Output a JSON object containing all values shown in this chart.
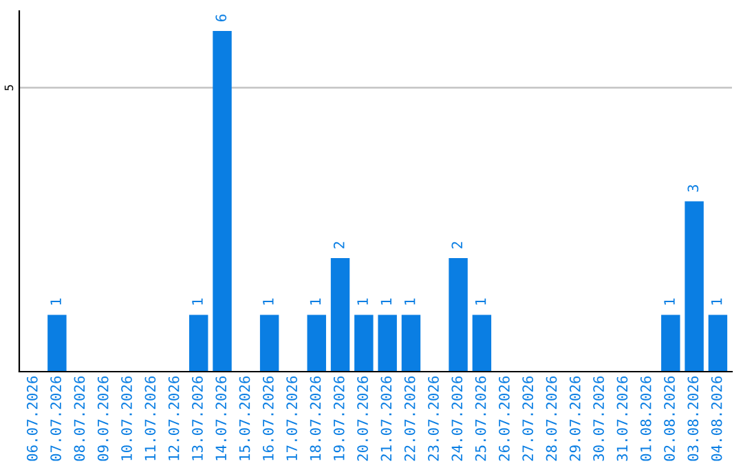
{
  "chart_data": {
    "type": "bar",
    "categories": [
      "06.07.2026",
      "07.07.2026",
      "08.07.2026",
      "09.07.2026",
      "10.07.2026",
      "11.07.2026",
      "12.07.2026",
      "13.07.2026",
      "14.07.2026",
      "15.07.2026",
      "16.07.2026",
      "17.07.2026",
      "18.07.2026",
      "19.07.2026",
      "20.07.2026",
      "21.07.2026",
      "22.07.2026",
      "23.07.2026",
      "24.07.2026",
      "25.07.2026",
      "26.07.2026",
      "27.07.2026",
      "28.07.2026",
      "29.07.2026",
      "30.07.2026",
      "31.07.2026",
      "01.08.2026",
      "02.08.2026",
      "03.08.2026",
      "04.08.2026"
    ],
    "values": [
      null,
      1,
      null,
      null,
      null,
      null,
      null,
      1,
      6,
      null,
      1,
      null,
      1,
      2,
      1,
      1,
      1,
      null,
      2,
      1,
      null,
      null,
      null,
      null,
      null,
      null,
      null,
      1,
      3,
      1
    ],
    "color": "#0a7ee3",
    "ylim": [
      0,
      6.35
    ],
    "yticks": [
      5
    ],
    "grid": "y",
    "data_labels": true
  }
}
